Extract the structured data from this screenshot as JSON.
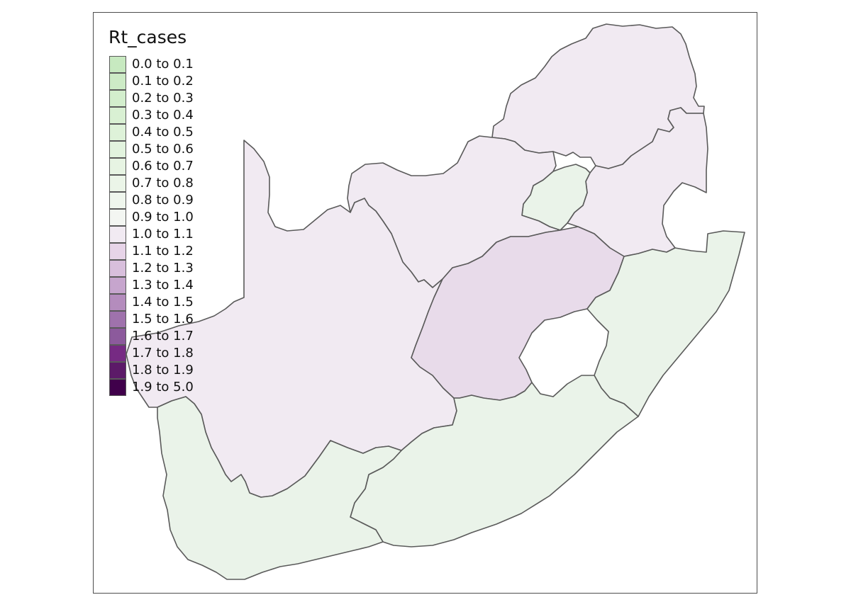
{
  "map": {
    "legend_title": "Rt_cases",
    "legend": [
      {
        "label": "0.0 to 0.1",
        "color": "#c7e9c0"
      },
      {
        "label": "0.1 to 0.2",
        "color": "#cdebc6"
      },
      {
        "label": "0.2 to 0.3",
        "color": "#d3eecd"
      },
      {
        "label": "0.3 to 0.4",
        "color": "#d9f0d3"
      },
      {
        "label": "0.4 to 0.5",
        "color": "#def2d9"
      },
      {
        "label": "0.5 to 0.6",
        "color": "#e2f3de"
      },
      {
        "label": "0.6 to 0.7",
        "color": "#e7f4e3"
      },
      {
        "label": "0.7 to 0.8",
        "color": "#ebf5e8"
      },
      {
        "label": "0.8 to 0.9",
        "color": "#eff6ed"
      },
      {
        "label": "0.9 to 1.0",
        "color": "#f3f6f2"
      },
      {
        "label": "1.0 to 1.1",
        "color": "#f1eaf2"
      },
      {
        "label": "1.1 to 1.2",
        "color": "#e7d4e8"
      },
      {
        "label": "1.2 to 1.3",
        "color": "#d8bfdc"
      },
      {
        "label": "1.3 to 1.4",
        "color": "#c6a5cd"
      },
      {
        "label": "1.4 to 1.5",
        "color": "#b48cbd"
      },
      {
        "label": "1.5 to 1.6",
        "color": "#9f72ac"
      },
      {
        "label": "1.6 to 1.7",
        "color": "#8c5a9c"
      },
      {
        "label": "1.7 to 1.8",
        "color": "#762a83"
      },
      {
        "label": "1.8 to 1.9",
        "color": "#5c1a68"
      },
      {
        "label": "1.9 to 5.0",
        "color": "#40004b"
      }
    ],
    "regions": [
      {
        "id": "limpopo",
        "fill": "#f1eaf2"
      },
      {
        "id": "mpumalanga",
        "fill": "#f1eaf2"
      },
      {
        "id": "gauteng",
        "fill": "#eaf3e9"
      },
      {
        "id": "north-west",
        "fill": "#f1eaf2"
      },
      {
        "id": "northern-cape",
        "fill": "#f1eaf2"
      },
      {
        "id": "free-state",
        "fill": "#e8dbea"
      },
      {
        "id": "kwazulu-natal",
        "fill": "#eaf3e9"
      },
      {
        "id": "eastern-cape",
        "fill": "#eaf3e9"
      },
      {
        "id": "western-cape",
        "fill": "#eaf3e9"
      }
    ]
  }
}
